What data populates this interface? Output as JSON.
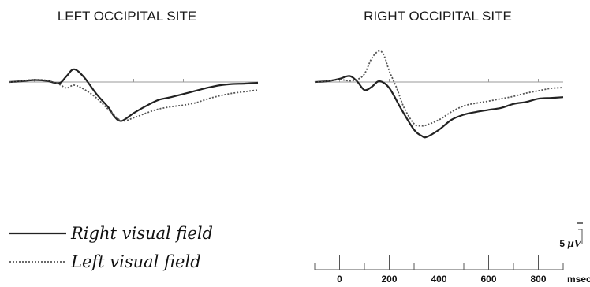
{
  "chart_data": {
    "type": "line",
    "x_unit": "msec",
    "amplitude_scale": {
      "value": 5,
      "unit": "µV"
    },
    "time_axis": {
      "ticks": [
        0,
        200,
        400,
        600,
        800
      ],
      "unit_label": "msec",
      "range": [
        -100,
        900
      ]
    },
    "legend": [
      {
        "name": "Right visual field",
        "style": "solid"
      },
      {
        "name": "Left visual field",
        "style": "dotted"
      }
    ],
    "panels": [
      {
        "title": "LEFT OCCIPITAL SITE",
        "series": [
          {
            "name": "Right visual field",
            "x": [
              -100,
              -50,
              0,
              50,
              100,
              130,
              160,
              200,
              250,
              300,
              320,
              350,
              400,
              450,
              500,
              550,
              600,
              650,
              700,
              750,
              800,
              850,
              900
            ],
            "y": [
              0,
              0.2,
              0.5,
              0.3,
              -0.3,
              1.5,
              3.2,
              1.2,
              -3.0,
              -6.5,
              -8.5,
              -9.8,
              -7.8,
              -6.0,
              -4.5,
              -3.8,
              -3.0,
              -2.2,
              -1.4,
              -0.8,
              -0.5,
              -0.4,
              -0.2
            ]
          },
          {
            "name": "Left visual field",
            "x": [
              -100,
              -50,
              0,
              50,
              100,
              130,
              160,
              200,
              250,
              300,
              350,
              400,
              450,
              500,
              550,
              600,
              650,
              700,
              750,
              800,
              850,
              900
            ],
            "y": [
              0,
              0.3,
              0.6,
              0.4,
              -0.6,
              -1.5,
              -0.8,
              -1.8,
              -4.0,
              -7.0,
              -9.7,
              -9.0,
              -7.8,
              -6.8,
              -6.2,
              -5.8,
              -5.2,
              -4.2,
              -3.4,
              -2.8,
              -2.4,
              -2.0
            ]
          }
        ]
      },
      {
        "title": "RIGHT OCCIPITAL SITE",
        "series": [
          {
            "name": "Right visual field",
            "x": [
              -100,
              -50,
              0,
              40,
              70,
              100,
              130,
              160,
              200,
              250,
              300,
              330,
              350,
              400,
              450,
              500,
              550,
              600,
              650,
              700,
              750,
              800,
              850,
              900
            ],
            "y": [
              0,
              0.2,
              0.8,
              1.5,
              0.2,
              -2.0,
              -1.2,
              0.2,
              -1.5,
              -7.0,
              -12.0,
              -13.5,
              -13.8,
              -12.0,
              -9.5,
              -8.2,
              -7.5,
              -7.0,
              -6.5,
              -5.5,
              -5.0,
              -4.2,
              -4.0,
              -3.8
            ]
          },
          {
            "name": "Left visual field",
            "x": [
              -100,
              -50,
              0,
              40,
              70,
              100,
              130,
              160,
              180,
              200,
              230,
              260,
              300,
              330,
              350,
              400,
              450,
              500,
              550,
              600,
              650,
              700,
              750,
              800,
              850,
              900
            ],
            "y": [
              0,
              0.3,
              0.6,
              0.3,
              0.6,
              2.0,
              6.0,
              7.8,
              6.5,
              2.8,
              -1.5,
              -6.5,
              -10.5,
              -11.0,
              -10.8,
              -9.5,
              -7.5,
              -6.0,
              -5.3,
              -4.8,
              -4.2,
              -3.6,
              -2.8,
              -2.2,
              -1.6,
              -1.4
            ]
          }
        ]
      }
    ]
  }
}
